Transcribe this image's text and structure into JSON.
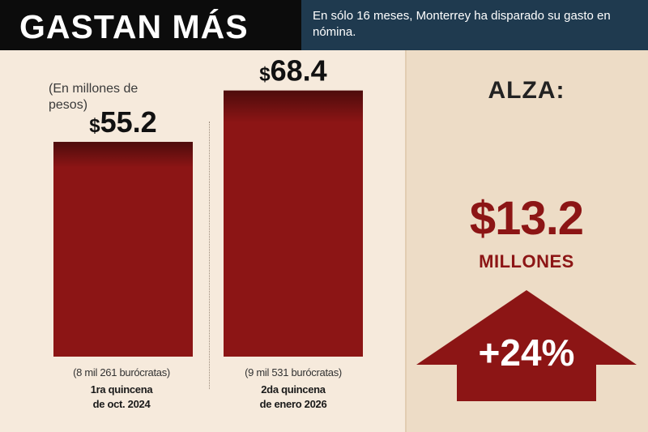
{
  "header": {
    "title": "GASTAN MÁS",
    "subtitle": "En sólo 16 meses, Monterrey ha disparado su gasto en nómina."
  },
  "chart_data": {
    "type": "bar",
    "unit_note": "(En millones de pesos)",
    "categories": [
      "1ra quincena de oct. 2024",
      "2da quincena de enero 2026"
    ],
    "category_notes": [
      "(8 mil 261 burócratas)",
      "(9 mil 531 burócratas)"
    ],
    "values": [
      55.2,
      68.4
    ],
    "value_labels": [
      "55.2",
      "68.4"
    ],
    "currency_symbol": "$",
    "bar_color": "#8c1515",
    "ylim": [
      0,
      75
    ],
    "grid": false
  },
  "summary": {
    "label": "ALZA:",
    "amount": "$13.2",
    "amount_unit": "MILLONES",
    "percent": "+24%",
    "accent_color": "#8c1515"
  },
  "cat_label_lines": [
    [
      "1ra quincena",
      "de oct. 2024"
    ],
    [
      "2da quincena",
      "de enero 2026"
    ]
  ]
}
